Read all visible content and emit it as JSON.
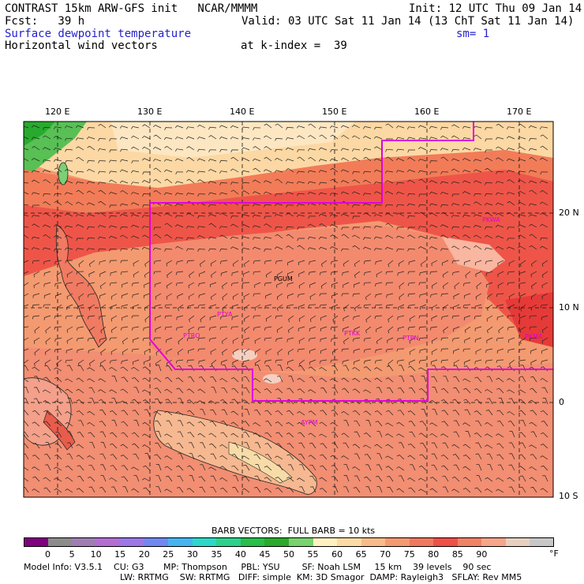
{
  "header": {
    "line1_left": "CONTRAST 15km ARW-GFS init   NCAR/MMMM",
    "line1_right": "Init: 12 UTC Thu 09 Jan 14",
    "line2_left": "Fcst:   39 h",
    "line2_right": "Valid: 03 UTC Sat 11 Jan 14 (13 ChT Sat 11 Jan 14)",
    "field1": "Surface dewpoint temperature",
    "smoothing": "sm= 1",
    "field2": "Horizontal wind vectors",
    "kindex": "at k-index =  39"
  },
  "axes": {
    "lon_labels": [
      "120 E",
      "130 E",
      "140 E",
      "150 E",
      "160 E",
      "170 E"
    ],
    "lat_labels": [
      "20 N",
      "10 N",
      "0",
      "10 S"
    ]
  },
  "stations": {
    "pgum": "PGUM",
    "ptya": "PTYA",
    "ptro": "PTRO",
    "ptkk": "PTKK",
    "ptpn": "PTPN",
    "pkma": "PKMA",
    "pkwa": "PKWA",
    "aypm": "AYPM"
  },
  "legend": {
    "barb_note": "BARB VECTORS:  FULL BARB = 10 kts",
    "unit": "°F",
    "colors": [
      "#800080",
      "#8c8c8c",
      "#a07eb4",
      "#b46ed2",
      "#9b78e6",
      "#7088f0",
      "#46b4f0",
      "#2cd8c8",
      "#2cd28c",
      "#28be4a",
      "#2aaa2a",
      "#78d26e",
      "#fff0c0",
      "#fcdca6",
      "#f8bc8a",
      "#f49a70",
      "#f07860",
      "#ee5048",
      "#f08266",
      "#f6a68a",
      "#e8d0c0",
      "#c8c8c8"
    ],
    "values": [
      "0",
      "5",
      "10",
      "15",
      "20",
      "25",
      "30",
      "35",
      "40",
      "45",
      "50",
      "55",
      "60",
      "65",
      "70",
      "75",
      "80",
      "85",
      "90"
    ]
  },
  "footer": {
    "line1": "Model Info: V3.5.1    CU: G3       MP: Thompson     PBL: YSU        SF: Noah LSM     15 km    39 levels    90 sec",
    "line2": "LW: RRTMG    SW: RRTMG   DIFF: simple  KM: 3D Smagor  DAMP: Rayleigh3   SFLAY: Rev MM5"
  }
}
